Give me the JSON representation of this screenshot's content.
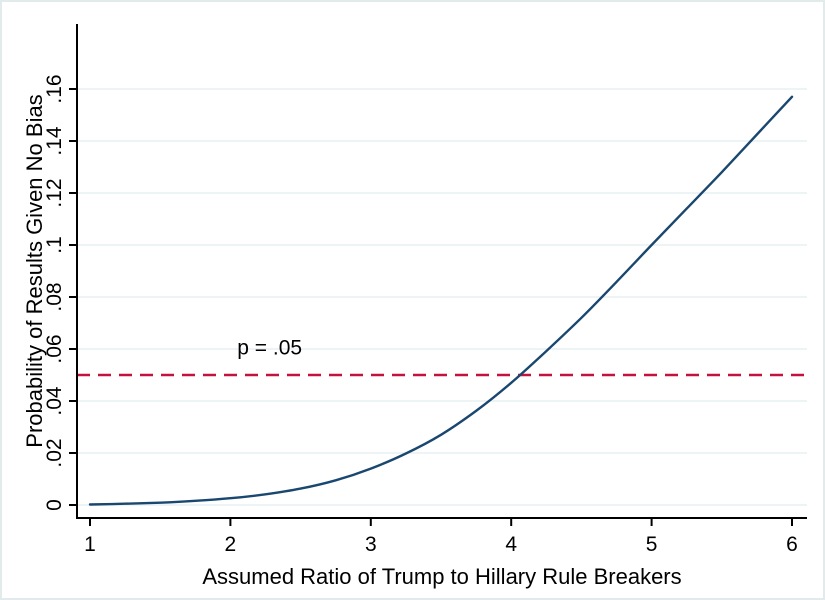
{
  "chart_data": {
    "type": "line",
    "title": "",
    "xlabel": "Assumed Ratio of Trump to Hillary Rule Breakers",
    "ylabel": "Probability of Results Given No Bias",
    "xlim": [
      1,
      6
    ],
    "ylim": [
      0,
      0.16
    ],
    "grid": "horizontal-only",
    "legend": "none",
    "x_ticks": [
      1,
      2,
      3,
      4,
      5,
      6
    ],
    "x_tick_labels": [
      "1",
      "2",
      "3",
      "4",
      "5",
      "6"
    ],
    "y_ticks": [
      0,
      0.02,
      0.04,
      0.06,
      0.08,
      0.1,
      0.12,
      0.14,
      0.16
    ],
    "y_tick_labels": [
      "0",
      ".02",
      ".04",
      ".06",
      ".08",
      ".1",
      ".12",
      ".14",
      ".16"
    ],
    "series": [
      {
        "name": "probability-curve",
        "color": "#1a476f",
        "x": [
          1,
          1.25,
          1.5,
          1.75,
          2,
          2.25,
          2.5,
          2.75,
          3,
          3.25,
          3.5,
          3.75,
          4,
          4.25,
          4.5,
          4.75,
          5,
          5.25,
          5.5,
          5.75,
          6
        ],
        "y": [
          0.0002,
          0.0005,
          0.0009,
          0.0016,
          0.0026,
          0.0041,
          0.0063,
          0.0095,
          0.014,
          0.0198,
          0.027,
          0.0362,
          0.047,
          0.0592,
          0.072,
          0.0858,
          0.1,
          0.114,
          0.128,
          0.1425,
          0.157
        ]
      }
    ],
    "reference_line": {
      "value": 0.05,
      "label": "p = .05",
      "color": "#c4123f",
      "style": "dashed",
      "label_x": 2.28,
      "label_y": 0.0605
    },
    "colors": {
      "curve": "#1a476f",
      "reference": "#c4123f",
      "gridline": "#e6f0f3",
      "axis": "#000000",
      "background": "#ffffff",
      "frame_border": "#e3eaec"
    }
  }
}
